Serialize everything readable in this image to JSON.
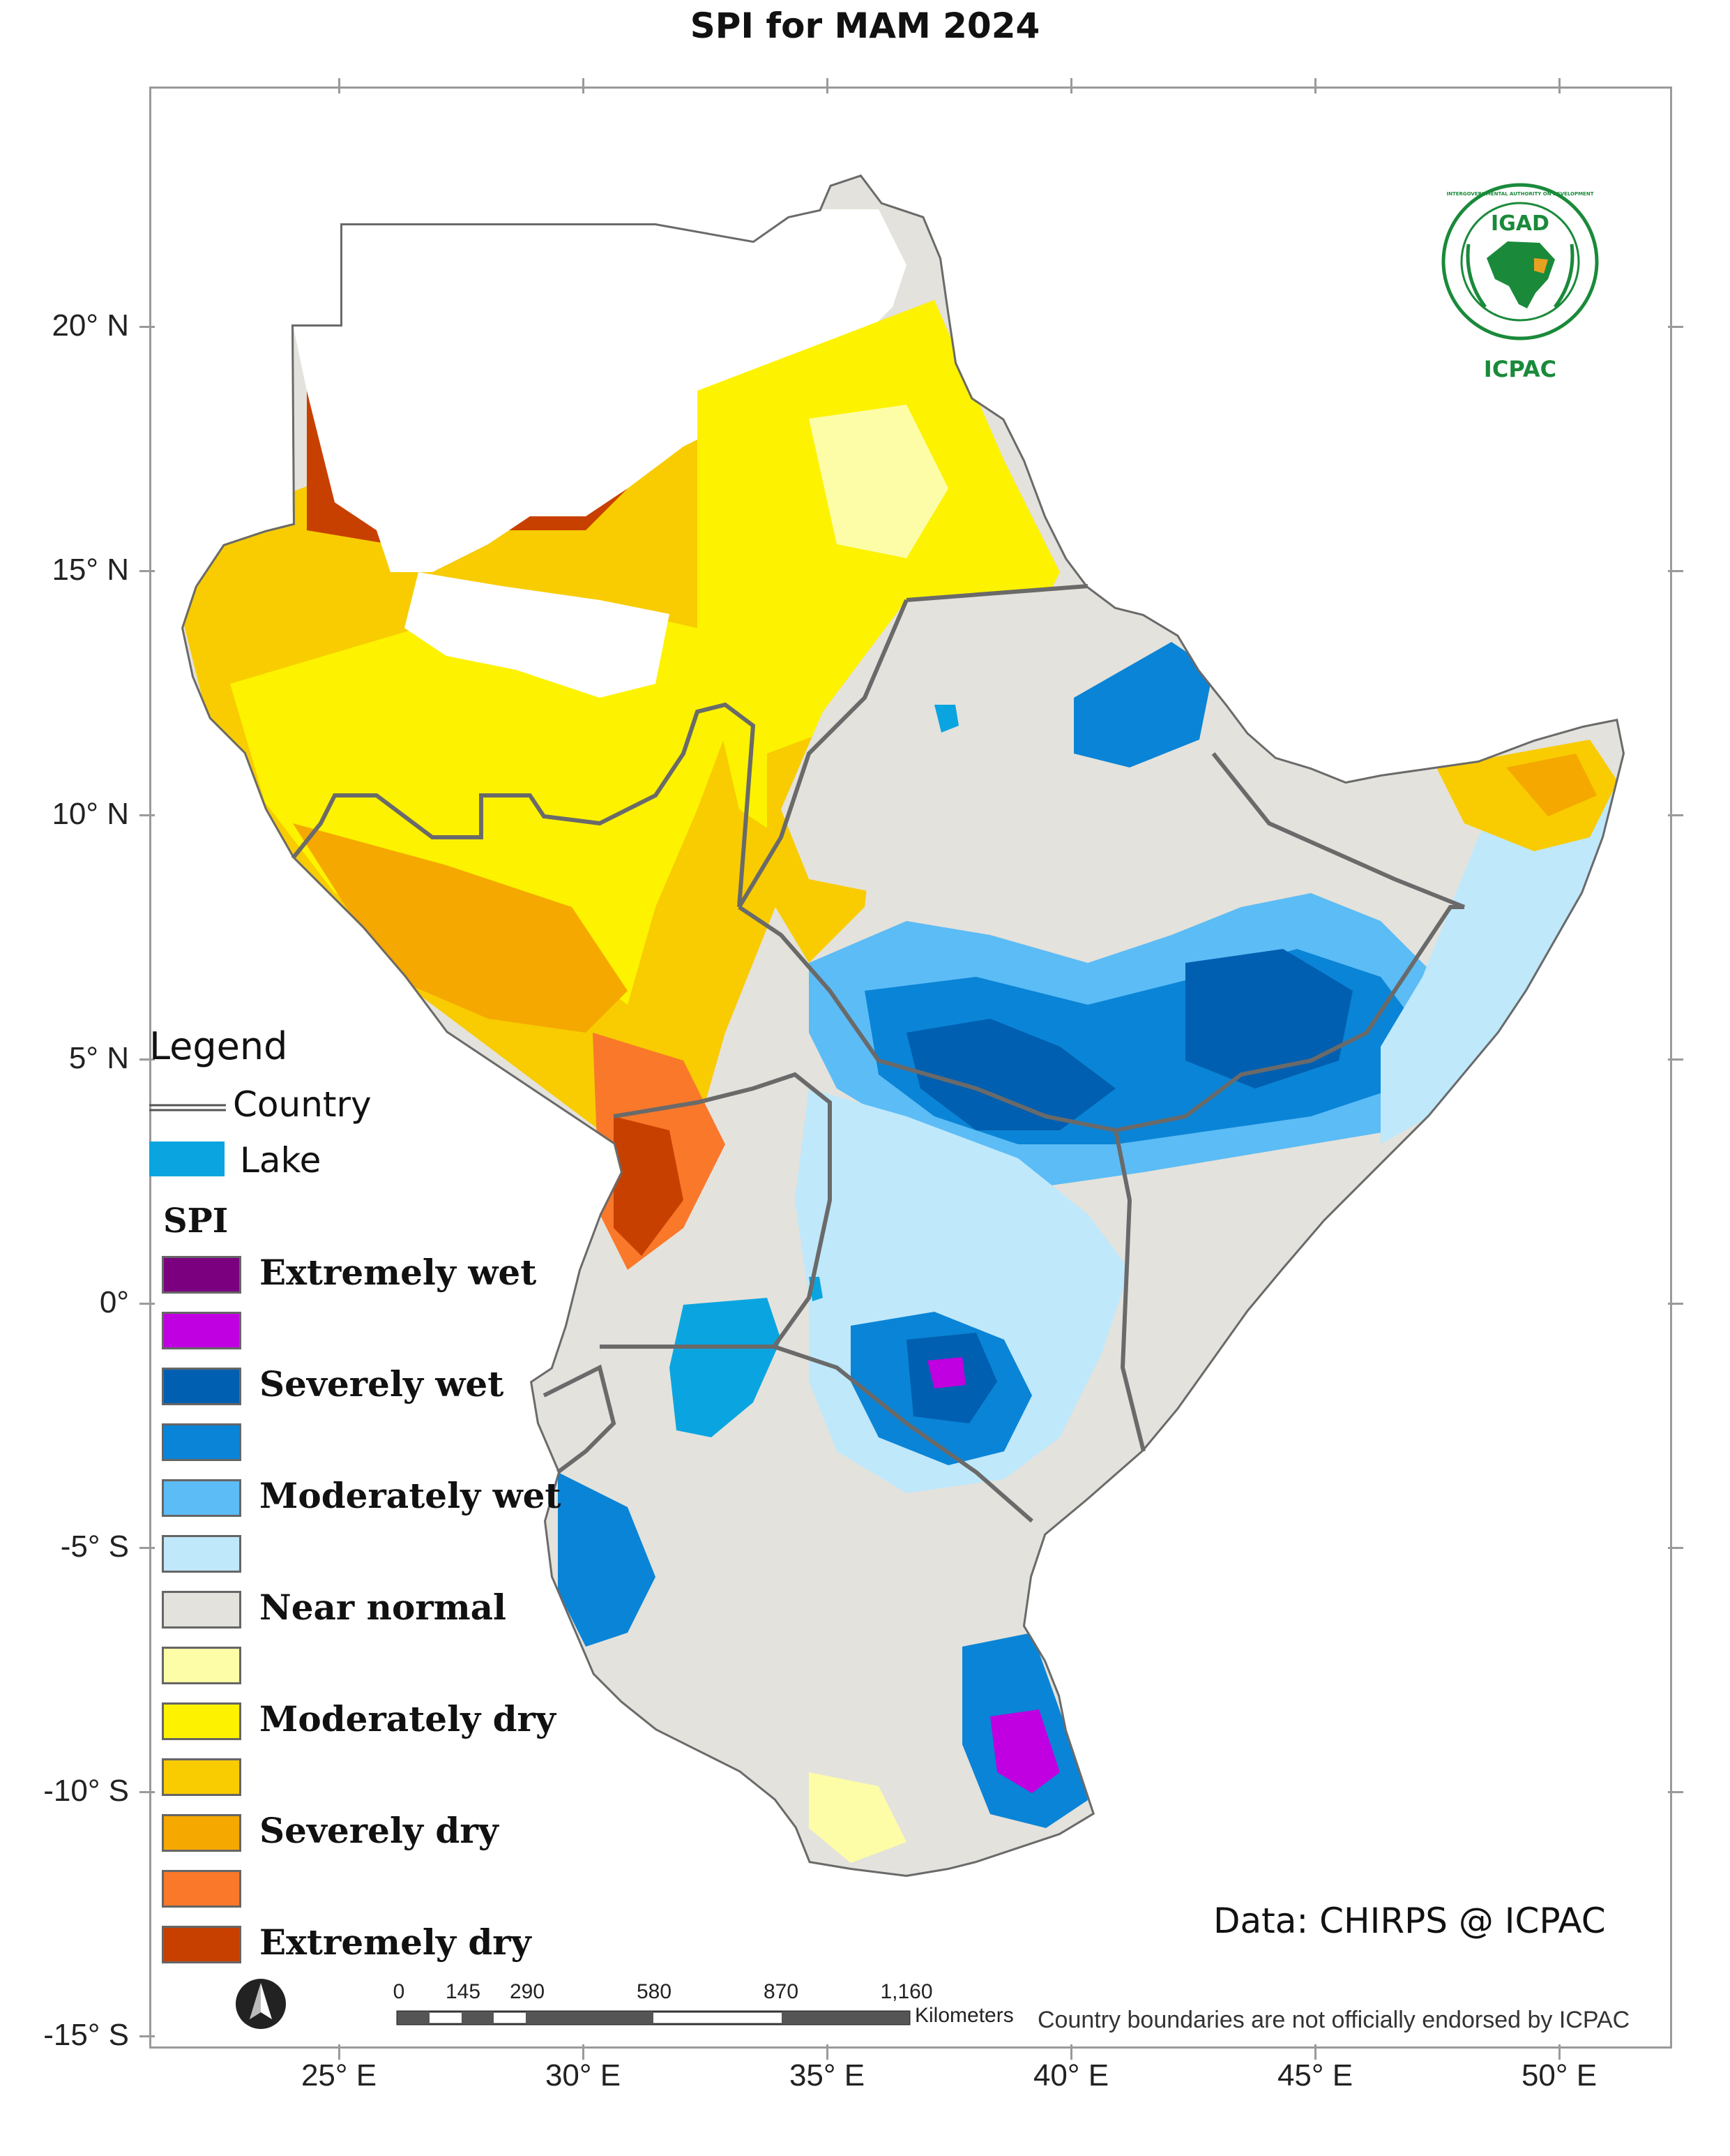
{
  "title": "SPI  for  MAM 2024",
  "axes": {
    "lat_labels": [
      "20° N",
      "15° N",
      "10° N",
      "5° N",
      "0°",
      "-5° S",
      "-10° S",
      "-15° S"
    ],
    "lon_labels": [
      "25° E",
      "30° E",
      "35° E",
      "40° E",
      "45° E",
      "50° E"
    ]
  },
  "legend": {
    "title": "Legend",
    "country_label": "Country",
    "lake_label": "Lake",
    "spi_heading": "SPI",
    "classes": [
      {
        "label": "Extremely wet",
        "color": "#7b0080"
      },
      {
        "label": "",
        "color": "#c000e0"
      },
      {
        "label": "Severely wet",
        "color": "#005fb0"
      },
      {
        "label": "",
        "color": "#0a84d6"
      },
      {
        "label": "Moderately wet",
        "color": "#5cbcf5"
      },
      {
        "label": "",
        "color": "#bfe8fb"
      },
      {
        "label": "Near normal",
        "color": "#e4e2dc"
      },
      {
        "label": "",
        "color": "#fdfda8"
      },
      {
        "label": "Moderately dry",
        "color": "#fdf200"
      },
      {
        "label": "",
        "color": "#f8cc00"
      },
      {
        "label": "Severely dry",
        "color": "#f5a800"
      },
      {
        "label": "",
        "color": "#f9782a"
      },
      {
        "label": "Extremely dry",
        "color": "#c84000"
      }
    ],
    "lake_color": "#0aa5e0"
  },
  "logo": {
    "top_text": "IGAD",
    "bottom_text": "ICPAC",
    "ring_text": "INTERGOVERNMENTAL AUTHORITY ON DEVELOPMENT",
    "color": "#1a8a3a"
  },
  "credit": "Data: CHIRPS @ ICPAC",
  "disclaimer": "Country boundaries are not officially endorsed by ICPAC",
  "scale_bar": {
    "labels": [
      "0",
      "145",
      "290",
      "580",
      "870",
      "1,160"
    ],
    "unit": "Kilometers"
  },
  "north_arrow": "north-arrow-icon"
}
